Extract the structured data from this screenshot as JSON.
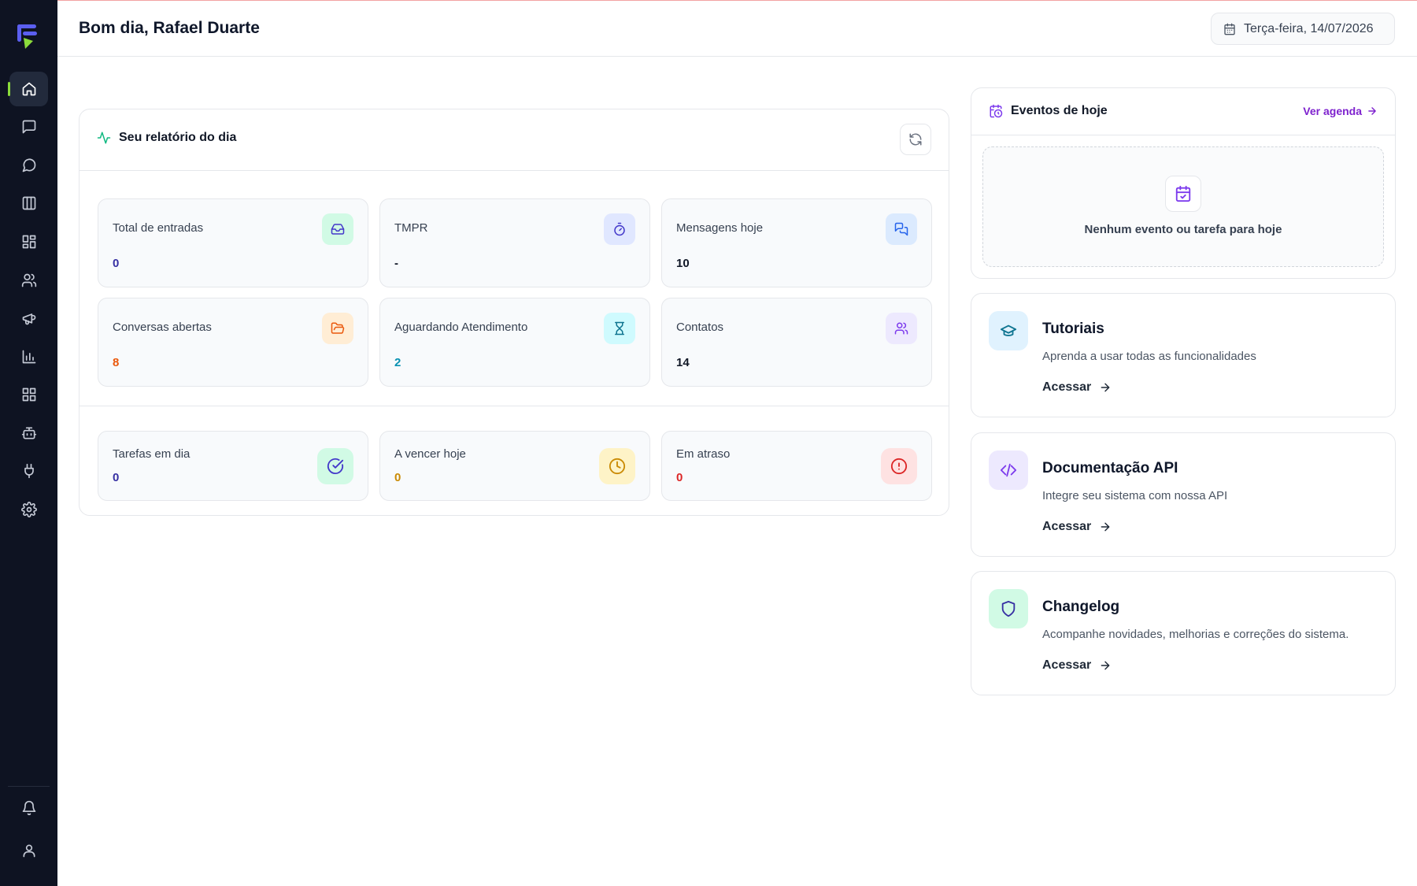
{
  "header": {
    "greeting": "Bom dia, Rafael Duarte",
    "date": "Terça-feira, 14/07/2026"
  },
  "sidebar": {
    "items": [
      {
        "name": "home",
        "icon": "home-icon",
        "active": true
      },
      {
        "name": "messages",
        "icon": "message-square-icon"
      },
      {
        "name": "chat",
        "icon": "message-circle-icon"
      },
      {
        "name": "kanban",
        "icon": "columns-icon"
      },
      {
        "name": "dashboard",
        "icon": "layout-grid-icon"
      },
      {
        "name": "contacts",
        "icon": "users-icon"
      },
      {
        "name": "campaigns",
        "icon": "megaphone-icon"
      },
      {
        "name": "reports",
        "icon": "bar-chart-icon"
      },
      {
        "name": "apps",
        "icon": "grid-icon"
      },
      {
        "name": "bots",
        "icon": "bot-icon"
      },
      {
        "name": "integrations",
        "icon": "plug-icon"
      },
      {
        "name": "settings",
        "icon": "gear-icon"
      }
    ],
    "bottom": [
      {
        "name": "notifications",
        "icon": "bell-icon"
      },
      {
        "name": "profile",
        "icon": "user-icon"
      }
    ]
  },
  "report": {
    "title": "Seu relatório do dia",
    "metrics": [
      {
        "label": "Total de entradas",
        "value": "0",
        "icon": "inbox-icon",
        "value_color": "#3730a3",
        "icon_bg": "#d1fae5",
        "icon_color": "#4338ca"
      },
      {
        "label": "TMPR",
        "value": "-",
        "icon": "timer-icon",
        "value_color": "#111827",
        "icon_bg": "#e0e7ff",
        "icon_color": "#4338ca"
      },
      {
        "label": "Mensagens hoje",
        "value": "10",
        "icon": "messages-icon",
        "value_color": "#111827",
        "icon_bg": "#dbeafe",
        "icon_color": "#2563eb"
      },
      {
        "label": "Conversas abertas",
        "value": "8",
        "icon": "folder-open-icon",
        "value_color": "#ea580c",
        "icon_bg": "#ffedd5",
        "icon_color": "#ea580c"
      },
      {
        "label": "Aguardando Atendimento",
        "value": "2",
        "icon": "hourglass-icon",
        "value_color": "#0891b2",
        "icon_bg": "#cffafe",
        "icon_color": "#0e7490"
      },
      {
        "label": "Contatos",
        "value": "14",
        "icon": "users-icon",
        "value_color": "#111827",
        "icon_bg": "#ede9fe",
        "icon_color": "#7c3aed"
      }
    ],
    "tasks": [
      {
        "label": "Tarefas em dia",
        "value": "0",
        "icon": "check-circle-icon",
        "value_color": "#3730a3",
        "icon_bg": "#d1fae5",
        "icon_color": "#4338ca"
      },
      {
        "label": "A vencer hoje",
        "value": "0",
        "icon": "clock-icon",
        "value_color": "#ca8a04",
        "icon_bg": "#fef3c7",
        "icon_color": "#ca8a04"
      },
      {
        "label": "Em atraso",
        "value": "0",
        "icon": "alert-circle-icon",
        "value_color": "#dc2626",
        "icon_bg": "#fee2e2",
        "icon_color": "#dc2626"
      }
    ]
  },
  "events": {
    "title": "Eventos de hoje",
    "link": "Ver agenda",
    "empty": "Nenhum evento ou tarefa para hoje"
  },
  "cards": [
    {
      "title": "Tutoriais",
      "desc": "Aprenda a usar todas as funcionalidades",
      "cta": "Acessar",
      "icon": "graduation-cap-icon",
      "icon_bg": "#e0f2fe",
      "icon_color": "#0e7490"
    },
    {
      "title": "Documentação API",
      "desc": "Integre seu sistema com nossa API",
      "cta": "Acessar",
      "icon": "code-icon",
      "icon_bg": "#ede9fe",
      "icon_color": "#7c3aed"
    },
    {
      "title": "Changelog",
      "desc": "Acompanhe novidades, melhorias e correções do sistema.",
      "cta": "Acessar",
      "icon": "shield-icon",
      "icon_bg": "#d1fae5",
      "icon_color": "#3730a3"
    }
  ]
}
